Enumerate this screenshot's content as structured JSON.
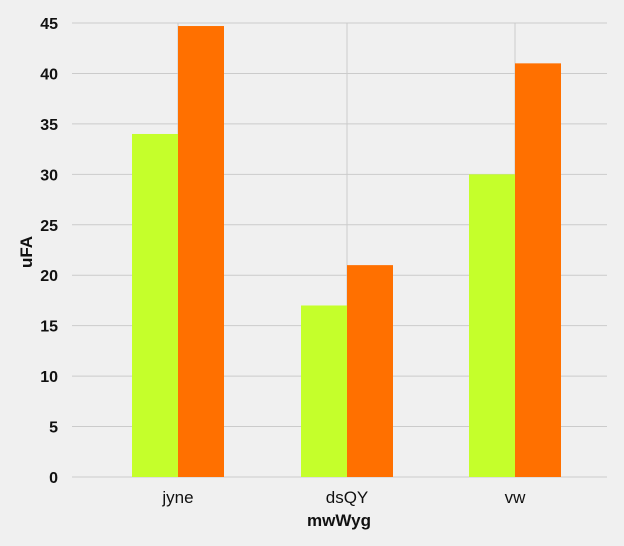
{
  "chart_data": {
    "type": "bar",
    "categories": [
      "jyne",
      "dsQY",
      "vw"
    ],
    "series": [
      {
        "values": [
          34,
          17,
          30
        ],
        "color": "#c5ff2b"
      },
      {
        "values": [
          44.7,
          21,
          41
        ],
        "color": "#ff7000"
      }
    ],
    "xlabel": "mwWyg",
    "ylabel": "uFA",
    "ylim": [
      0,
      45
    ],
    "yticks": [
      0,
      5,
      10,
      15,
      20,
      25,
      30,
      35,
      40,
      45
    ],
    "grid": true,
    "background": "#f0f0f0",
    "grid_color": "#cbcbcb",
    "legend": false
  }
}
